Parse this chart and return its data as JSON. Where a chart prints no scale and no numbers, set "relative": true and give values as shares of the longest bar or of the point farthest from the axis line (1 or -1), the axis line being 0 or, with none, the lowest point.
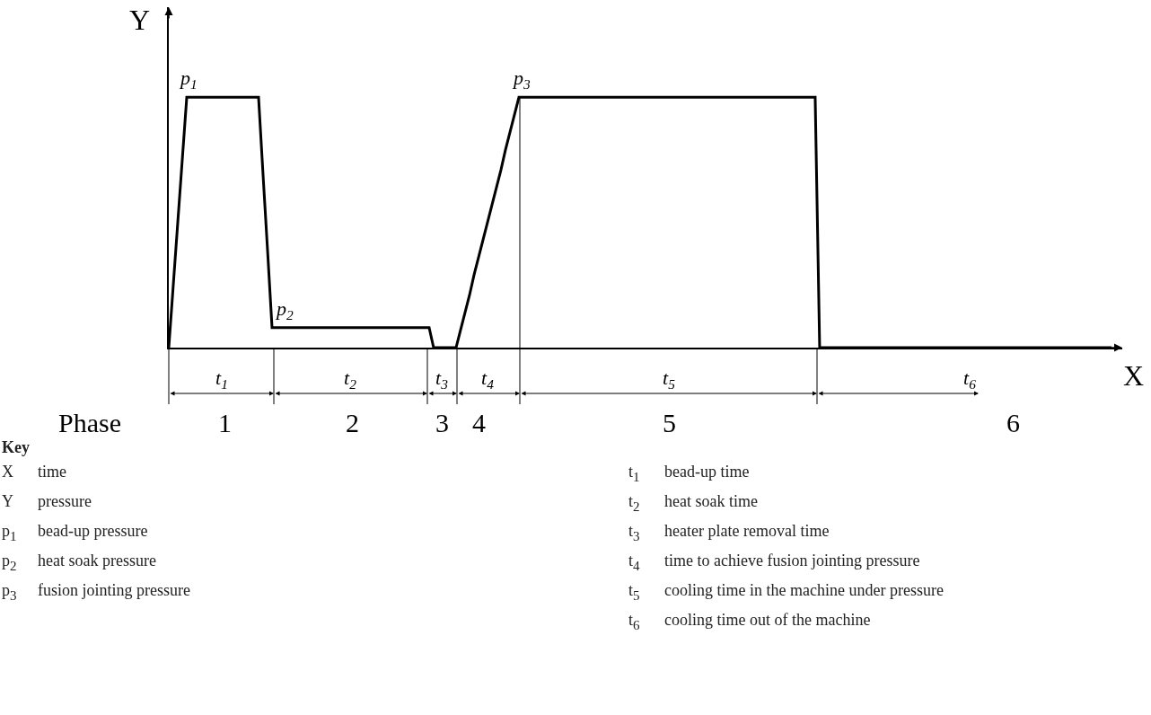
{
  "chart_data": {
    "type": "line",
    "relative": true,
    "xlabel": "X",
    "ylabel": "Y",
    "categories": [
      null,
      null,
      null,
      null,
      null,
      null,
      null,
      null,
      null,
      null,
      null,
      null,
      null,
      null,
      null,
      null,
      null,
      null,
      null,
      null,
      null,
      null,
      null,
      null,
      null,
      null,
      null,
      null,
      null,
      null,
      null,
      null,
      null,
      null,
      null,
      null,
      null,
      null,
      null,
      null,
      null,
      null,
      null,
      null,
      null,
      null,
      null,
      null,
      null,
      null,
      null,
      null,
      null,
      null,
      null,
      null,
      null,
      null,
      null,
      null,
      null,
      null,
      null,
      null,
      null,
      null,
      null,
      null,
      null,
      null,
      null,
      null,
      null,
      null,
      null,
      null,
      null,
      null,
      null,
      null,
      null,
      null,
      null,
      null,
      null,
      null,
      null,
      null,
      null,
      null,
      null,
      null,
      null,
      null,
      null,
      null,
      null,
      null,
      null,
      null,
      null,
      null,
      null,
      null,
      null,
      null,
      null,
      null,
      null,
      null,
      null,
      null,
      null,
      null,
      null,
      null,
      null,
      null,
      null,
      null,
      null,
      null,
      null,
      null,
      null,
      null,
      null,
      null,
      null,
      null,
      null,
      null,
      null,
      null,
      null,
      null,
      null,
      null,
      null,
      null,
      null,
      null,
      null,
      null,
      null,
      null,
      null,
      null,
      null,
      null,
      null,
      null,
      null,
      null,
      null,
      null,
      null,
      null,
      null,
      null,
      null,
      null,
      null,
      null,
      null,
      null,
      null,
      null,
      null,
      null,
      null,
      null,
      null,
      null,
      null,
      null,
      null,
      null,
      null,
      null,
      null,
      null,
      null,
      null,
      null,
      null,
      null,
      null,
      null,
      null,
      null,
      null,
      null,
      null,
      null,
      null,
      null,
      null,
      null,
      null,
      null,
      null,
      null,
      null,
      null,
      null,
      null,
      null,
      null,
      null,
      null
    ],
    "series": [
      {
        "color": "#000000",
        "values": [
          0,
          0.25,
          0.5,
          0.75,
          1,
          1,
          1,
          1,
          1,
          1,
          1,
          1,
          1,
          1,
          1,
          1,
          1,
          1,
          1,
          1,
          1,
          0.69,
          0.39,
          0.08,
          0.08,
          0.08,
          0.08,
          0.08,
          0.08,
          0.08,
          0.08,
          0.08,
          0.08,
          0.08,
          0.08,
          0.08,
          0.08,
          0.08,
          0.08,
          0.08,
          0.08,
          0.08,
          0.08,
          0.08,
          0.08,
          0.08,
          0.08,
          0.08,
          0.08,
          0.08,
          0.08,
          0.08,
          0.08,
          0.08,
          0.08,
          0.08,
          0.08,
          0.08,
          0.08,
          0,
          0,
          0,
          0,
          0,
          0,
          0.07,
          0.14,
          0.21,
          0.29,
          0.36,
          0.43,
          0.5,
          0.57,
          0.64,
          0.71,
          0.79,
          0.86,
          0.93,
          1,
          1,
          1,
          1,
          1,
          1,
          1,
          1,
          1,
          1,
          1,
          1,
          1,
          1,
          1,
          1,
          1,
          1,
          1,
          1,
          1,
          1,
          1,
          1,
          1,
          1,
          1,
          1,
          1,
          1,
          1,
          1,
          1,
          1,
          1,
          1,
          1,
          1,
          1,
          1,
          1,
          1,
          1,
          1,
          1,
          1,
          1,
          1,
          1,
          1,
          1,
          1,
          1,
          1,
          1,
          1,
          1,
          1,
          1,
          1,
          1,
          1,
          1,
          1,
          1,
          1,
          1,
          0,
          0,
          0,
          0,
          0,
          0,
          0,
          0,
          0,
          0,
          0,
          0,
          0,
          0,
          0,
          0,
          0,
          0,
          0,
          0,
          0,
          0,
          0,
          0,
          0,
          0,
          0,
          0,
          0,
          0,
          0,
          0,
          0,
          0,
          0,
          0,
          0,
          0,
          0,
          0,
          0,
          0,
          0,
          0,
          0,
          0,
          0,
          0,
          0,
          0,
          0,
          0,
          0,
          0,
          0,
          0,
          0,
          0,
          0,
          0,
          0,
          0,
          0,
          0,
          0,
          0
        ]
      }
    ],
    "grid": false,
    "marker": "none",
    "line_style": "solid",
    "annotations": [
      "p$_{1}$",
      "p$_{2}$",
      "p$_{3}$",
      "t$_{1}$",
      "t$_{2}$",
      "t$_{3}$",
      "t$_{4}$",
      "t$_{5}$",
      "t$_{6}$",
      "Phase",
      "1",
      "2",
      "3",
      "4",
      "5",
      "6",
      "Key",
      "X time",
      "Y pressure",
      "p$_{1}$ bead-up pressure",
      "p$_{2}$ heat soak pressure",
      "p$_{3}$ fusion jointing pressure",
      "t$_{1}$ bead-up time",
      "t$_{2}$ heat soak time",
      "t$_{3}$ heater plate removal time",
      "t$_{4}$ time to achieve fusion jointing pressure",
      "t$_{5}$ cooling time in the machine under pressure",
      "t$_{6}$ cooling time out of the machine"
    ]
  }
}
